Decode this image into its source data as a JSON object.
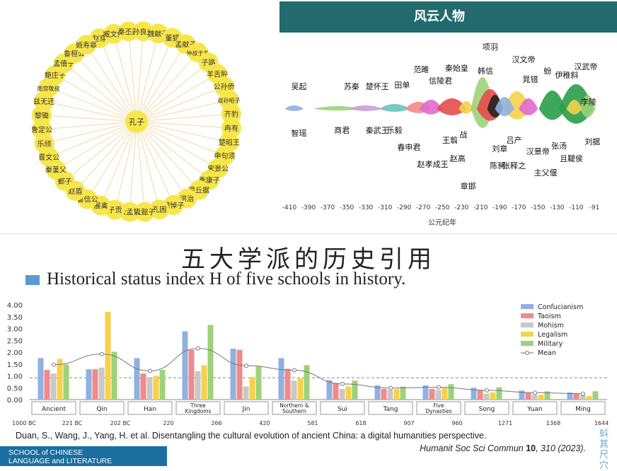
{
  "network": {
    "center": "孔子",
    "nodes": [
      "赵穿",
      "臧文仲",
      "秦丕兹",
      "孙良夫",
      "魏献子",
      "董狐",
      "孟献子",
      "仲叔于奚",
      "子路",
      "羊舌肸",
      "公孙侨",
      "叔孙昭子",
      "齐豹",
      "冉有",
      "楚昭王",
      "申句须",
      "宋景公",
      "季康子",
      "梁丘据",
      "洪治",
      "魏悼子",
      "孔困",
      "孟懿子",
      "公孟絷",
      "子贡",
      "展禽",
      "鲁信公",
      "赵盾",
      "郵子",
      "秦堇父",
      "晋文公",
      "乐颀",
      "鲁定公",
      "黎锄",
      "兹无还",
      "南宫敬叔",
      "鲍庄子",
      "孟僖子",
      "鲁桓公",
      "姬寿皋"
    ]
  },
  "timeline": {
    "title": "风云人物",
    "xlabel": "公元纪年",
    "ticks": [
      "-410",
      "-390",
      "-370",
      "-350",
      "-330",
      "-310",
      "-290",
      "-270",
      "-250",
      "-230",
      "-210",
      "-190",
      "-170",
      "-150",
      "-130",
      "-110",
      "-91"
    ],
    "tick_values": [
      -410,
      -390,
      -370,
      -350,
      -330,
      -310,
      -290,
      -270,
      -250,
      -230,
      -210,
      -190,
      -170,
      -150,
      -130,
      -110,
      -91
    ],
    "labels_top": [
      "吴起",
      "苏秦",
      "楚怀王",
      "田单",
      "范雎",
      "信陵君",
      "秦始皇",
      "项羽",
      "韩信",
      "汉文帝",
      "晁错",
      "蚡",
      "伊稚斜",
      "汉武帝",
      "李陵"
    ],
    "labels_bottom": [
      "智瑶",
      "商君",
      "秦武王",
      "乐毅",
      "春申君",
      "王翦",
      "战",
      "赵孝成王",
      "赵高",
      "章邯",
      "刘章",
      "吕产",
      "陈豨",
      "张释之",
      "汉景帝",
      "主父偃",
      "张汤",
      "且鞮侯",
      "刘据"
    ]
  },
  "bottom": {
    "cn_title": "五大学派的历史引用",
    "en_title": "Historical status index H of five schools in history.",
    "citation": "Duan, S., Wang, J., Yang, H. et al. Disentangling the cultural evolution of ancient China: a digital humanities perspective.",
    "journal": "Humanit Soc Sci Commun",
    "volume": "10",
    "pages": ", 310 (2023).",
    "school_line1": "SCHOOL of CHINESE",
    "school_line2": "LANGUAGE and LITERATURE",
    "stamp": "蚪其尺穴"
  },
  "chart_data": {
    "type": "bar",
    "categories": [
      "Ancient",
      "Qin",
      "Han",
      "Three Kingdoms",
      "Jin",
      "Northern & Southern",
      "Sui",
      "Tang",
      "Five Dynasties",
      "Song",
      "Yuan",
      "Ming"
    ],
    "year_ticks": [
      "1000 BC",
      "221 BC",
      "202 BC",
      "220",
      "266",
      "420",
      "581",
      "618",
      "907",
      "960",
      "1271",
      "1368",
      "1644"
    ],
    "ylim": [
      0,
      4.0
    ],
    "yticks": [
      "0.00",
      "0.50",
      "1.00",
      "1.50",
      "2.00",
      "2.50",
      "3.00",
      "3.50",
      "4.00"
    ],
    "reference_line": 0.92,
    "legend_position": "top-right",
    "series": [
      {
        "name": "Confucianism",
        "color": "#8fb1e0",
        "values": [
          1.75,
          1.28,
          1.75,
          2.88,
          2.15,
          1.75,
          0.82,
          0.6,
          0.6,
          0.5,
          0.38,
          0.3
        ]
      },
      {
        "name": "Taoism",
        "color": "#f08a8a",
        "values": [
          1.25,
          1.28,
          1.1,
          2.1,
          2.1,
          1.3,
          0.7,
          0.45,
          0.45,
          0.4,
          0.3,
          0.25
        ]
      },
      {
        "name": "Mohism",
        "color": "#c8c8c8",
        "values": [
          1.1,
          1.35,
          0.95,
          1.2,
          0.55,
          0.8,
          0.45,
          0.4,
          0.4,
          0.25,
          0.2,
          0.2
        ]
      },
      {
        "name": "Legalism",
        "color": "#f5d24a",
        "values": [
          1.72,
          3.7,
          1.0,
          1.45,
          0.95,
          0.9,
          0.55,
          0.45,
          0.5,
          0.3,
          0.2,
          0.15
        ]
      },
      {
        "name": "Military",
        "color": "#9ed17a",
        "values": [
          1.48,
          2.02,
          1.25,
          3.15,
          1.4,
          1.45,
          0.8,
          0.55,
          0.65,
          0.52,
          0.35,
          0.35
        ]
      }
    ],
    "mean_series": {
      "name": "Mean",
      "values": [
        1.47,
        1.92,
        1.21,
        2.16,
        1.43,
        1.24,
        0.66,
        0.49,
        0.52,
        0.39,
        0.29,
        0.25
      ]
    }
  }
}
